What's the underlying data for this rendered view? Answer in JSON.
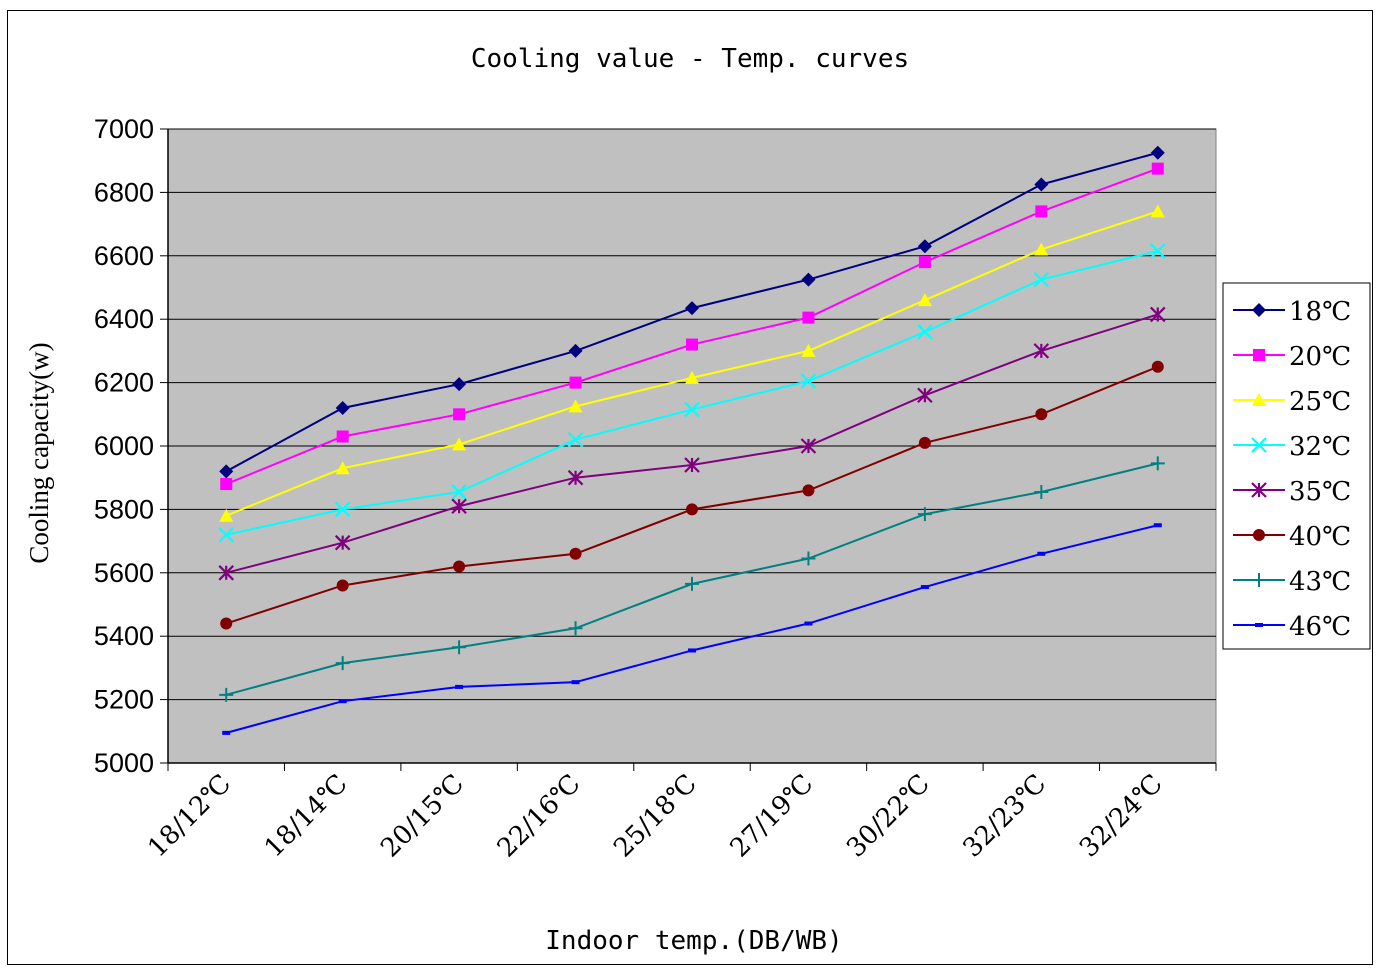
{
  "chart_data": {
    "type": "line",
    "title": "Cooling value - Temp. curves",
    "xlabel": "Indoor temp.(DB/WB)",
    "ylabel": "Cooling capacity(w)",
    "ylim": [
      5000,
      7000
    ],
    "yticks": [
      5000,
      5200,
      5400,
      5600,
      5800,
      6000,
      6200,
      6400,
      6600,
      6800,
      7000
    ],
    "grid": true,
    "legend_position": "right",
    "categories": [
      "18/12℃",
      "18/14℃",
      "20/15℃",
      "22/16℃",
      "25/18℃",
      "27/19℃",
      "30/22℃",
      "32/23℃",
      "32/24℃"
    ],
    "series": [
      {
        "name": "18℃",
        "color": "#000080",
        "marker": "diamond",
        "values": [
          5920,
          6120,
          6195,
          6300,
          6435,
          6525,
          6630,
          6825,
          6925
        ]
      },
      {
        "name": "20℃",
        "color": "#FF00FF",
        "marker": "square",
        "values": [
          5880,
          6030,
          6100,
          6200,
          6320,
          6405,
          6580,
          6740,
          6875
        ]
      },
      {
        "name": "25℃",
        "color": "#FFFF00",
        "marker": "triangle",
        "values": [
          5780,
          5930,
          6005,
          6125,
          6215,
          6300,
          6460,
          6620,
          6740
        ]
      },
      {
        "name": "32℃",
        "color": "#00FFFF",
        "marker": "x",
        "values": [
          5720,
          5800,
          5855,
          6020,
          6115,
          6205,
          6360,
          6525,
          6615
        ]
      },
      {
        "name": "35℃",
        "color": "#800080",
        "marker": "star",
        "values": [
          5600,
          5695,
          5810,
          5900,
          5940,
          6000,
          6160,
          6300,
          6415
        ]
      },
      {
        "name": "40℃",
        "color": "#800000",
        "marker": "circle",
        "values": [
          5440,
          5560,
          5620,
          5660,
          5800,
          5860,
          6010,
          6100,
          6250
        ]
      },
      {
        "name": "43℃",
        "color": "#008080",
        "marker": "plus",
        "values": [
          5215,
          5315,
          5365,
          5425,
          5565,
          5645,
          5785,
          5855,
          5945
        ]
      },
      {
        "name": "46℃",
        "color": "#0000FF",
        "marker": "dash",
        "values": [
          5095,
          5195,
          5240,
          5255,
          5355,
          5440,
          5555,
          5660,
          5750
        ]
      }
    ]
  },
  "style": {
    "plot_background": "#C0C0C0",
    "gridline_color": "#000000"
  }
}
